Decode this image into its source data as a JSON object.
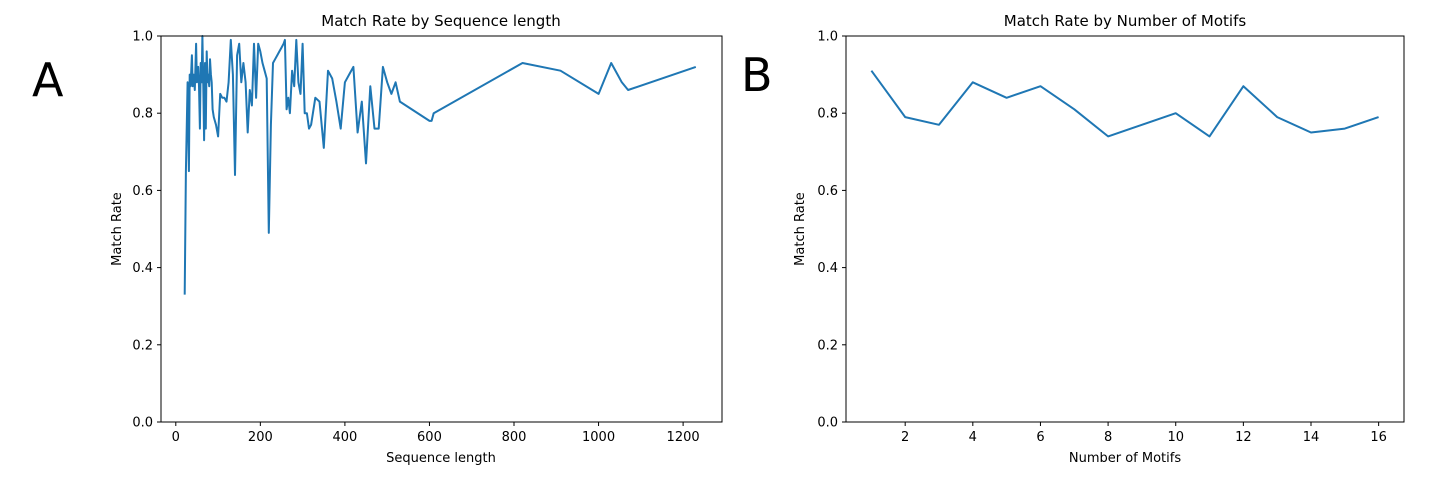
{
  "panels": [
    {
      "letter": "A",
      "chart_data": {
        "type": "line",
        "title": "Match Rate by Sequence length",
        "xlabel": "Sequence length",
        "ylabel": "Match Rate",
        "xlim": [
          -35,
          1292
        ],
        "ylim": [
          0.0,
          1.0
        ],
        "xticks": [
          0,
          200,
          400,
          600,
          800,
          1000,
          1200
        ],
        "yticks": [
          0.0,
          0.2,
          0.4,
          0.6,
          0.8,
          1.0
        ],
        "ytick_labels": [
          "0.0",
          "0.2",
          "0.4",
          "0.6",
          "0.8",
          "1.0"
        ],
        "grid": false,
        "line_color": "#1f77b4",
        "series": [
          {
            "x": [
              21,
              24,
              28,
              31,
              33,
              35,
              38,
              40,
              42,
              45,
              48,
              50,
              53,
              55,
              57,
              59,
              61,
              63,
              65,
              67,
              69,
              71,
              73,
              75,
              77,
              79,
              81,
              83,
              85,
              87,
              90,
              95,
              100,
              105,
              110,
              115,
              120,
              125,
              130,
              135,
              140,
              145,
              150,
              155,
              160,
              165,
              170,
              175,
              180,
              185,
              190,
              195,
              200,
              205,
              210,
              215,
              220,
              225,
              230,
              235,
              240,
              245,
              250,
              255,
              258,
              262,
              266,
              270,
              275,
              280,
              285,
              290,
              295,
              300,
              305,
              310,
              315,
              320,
              330,
              340,
              350,
              360,
              370,
              380,
              390,
              400,
              410,
              420,
              430,
              440,
              450,
              460,
              470,
              480,
              490,
              500,
              510,
              520,
              530,
              600,
              605,
              610,
              820,
              910,
              1000,
              1030,
              1045,
              1055,
              1070,
              1230
            ],
            "y": [
              0.33,
              0.65,
              0.88,
              0.65,
              0.9,
              0.87,
              0.95,
              0.87,
              0.9,
              0.86,
              0.98,
              0.88,
              0.92,
              0.87,
              0.76,
              0.93,
              0.88,
              1.0,
              0.87,
              0.73,
              0.93,
              0.76,
              0.96,
              0.88,
              0.9,
              0.87,
              0.94,
              0.9,
              0.88,
              0.81,
              0.79,
              0.77,
              0.74,
              0.85,
              0.84,
              0.84,
              0.83,
              0.88,
              0.99,
              0.9,
              0.64,
              0.95,
              0.98,
              0.88,
              0.93,
              0.88,
              0.75,
              0.86,
              0.82,
              0.98,
              0.84,
              0.98,
              0.96,
              0.93,
              0.91,
              0.89,
              0.49,
              0.77,
              0.93,
              0.94,
              0.95,
              0.96,
              0.97,
              0.98,
              0.99,
              0.81,
              0.84,
              0.8,
              0.91,
              0.87,
              0.99,
              0.88,
              0.85,
              0.98,
              0.8,
              0.8,
              0.76,
              0.77,
              0.84,
              0.83,
              0.71,
              0.91,
              0.89,
              0.83,
              0.76,
              0.88,
              0.9,
              0.92,
              0.75,
              0.83,
              0.67,
              0.87,
              0.76,
              0.76,
              0.92,
              0.88,
              0.85,
              0.88,
              0.83,
              0.78,
              0.78,
              0.8,
              0.93,
              0.91,
              0.85,
              0.93,
              0.9,
              0.88,
              0.86,
              0.92
            ]
          }
        ]
      }
    },
    {
      "letter": "B",
      "chart_data": {
        "type": "line",
        "title": "Match Rate by Number of Motifs",
        "xlabel": "Number of Motifs",
        "ylabel": "Match Rate",
        "xlim": [
          0.25,
          16.75
        ],
        "ylim": [
          0.0,
          1.0
        ],
        "xticks": [
          2,
          4,
          6,
          8,
          10,
          12,
          14,
          16
        ],
        "yticks": [
          0.0,
          0.2,
          0.4,
          0.6,
          0.8,
          1.0
        ],
        "ytick_labels": [
          "0.0",
          "0.2",
          "0.4",
          "0.6",
          "0.8",
          "1.0"
        ],
        "grid": false,
        "line_color": "#1f77b4",
        "series": [
          {
            "x": [
              1,
              2,
              3,
              4,
              5,
              6,
              7,
              8,
              9,
              10,
              11,
              12,
              13,
              14,
              15,
              16
            ],
            "y": [
              0.91,
              0.79,
              0.77,
              0.88,
              0.84,
              0.87,
              0.81,
              0.74,
              0.77,
              0.8,
              0.74,
              0.87,
              0.79,
              0.75,
              0.76,
              0.79
            ]
          }
        ]
      }
    }
  ]
}
